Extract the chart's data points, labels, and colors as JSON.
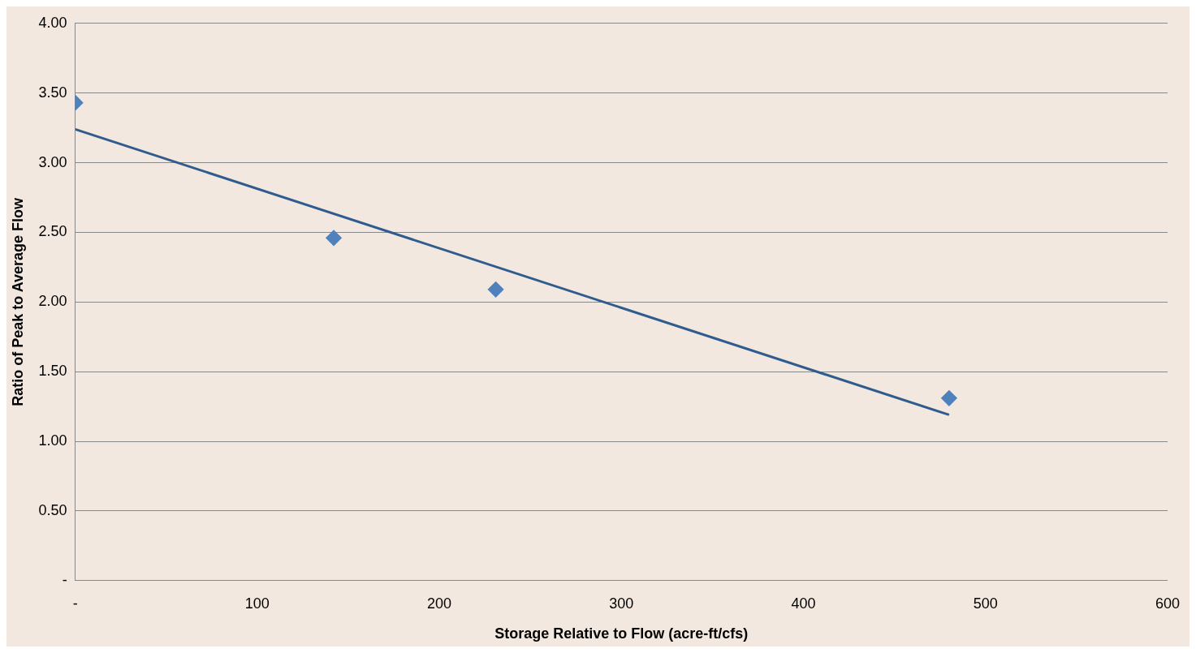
{
  "chart_data": {
    "type": "scatter",
    "xlabel": "Storage Relative to Flow (acre-ft/cfs)",
    "ylabel": "Ratio of Peak to Average Flow",
    "series": [
      {
        "type": "scatter",
        "color": "#4f81bd",
        "x": [
          0,
          142,
          231,
          480
        ],
        "values": [
          3.43,
          2.46,
          2.09,
          1.31
        ],
        "marker": "diamond"
      },
      {
        "type": "line",
        "color": "#2f5b8f",
        "x": [
          0,
          480
        ],
        "values": [
          3.24,
          1.19
        ],
        "marker": "none",
        "line_style": "solid"
      }
    ],
    "xlim": [
      0,
      600
    ],
    "xticks": [
      {
        "value": 0,
        "label": "-"
      },
      100,
      200,
      300,
      400,
      500,
      600
    ],
    "ylim": [
      0,
      4
    ],
    "yticks": [
      {
        "value": 0,
        "label": "-"
      },
      {
        "value": 0.5,
        "label": "0.50"
      },
      {
        "value": 1,
        "label": "1.00"
      },
      {
        "value": 1.5,
        "label": "1.50"
      },
      {
        "value": 2,
        "label": "2.00"
      },
      {
        "value": 2.5,
        "label": "2.50"
      },
      {
        "value": 3,
        "label": "3.00"
      },
      {
        "value": 3.5,
        "label": "3.50"
      },
      {
        "value": 4,
        "label": "4.00"
      }
    ],
    "grid": "y",
    "legend": false
  }
}
